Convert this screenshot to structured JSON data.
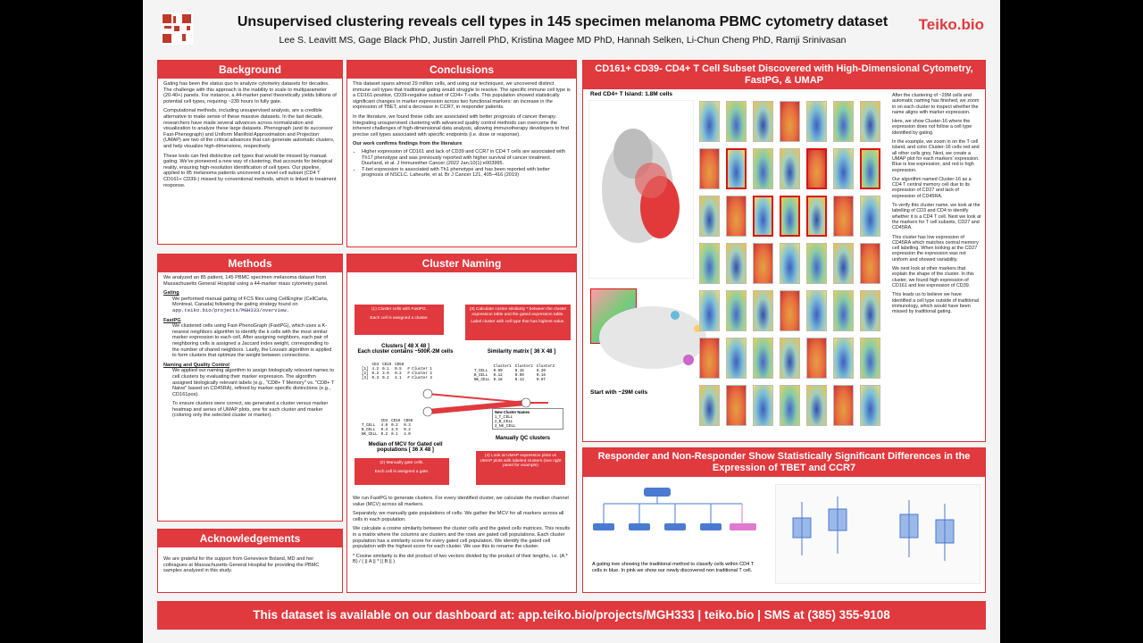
{
  "header": {
    "title": "Unsupervised clustering reveals cell types in 145 specimen melanoma PBMC cytometry dataset",
    "authors": "Lee S. Leavitt MS, Gage Black PhD, Justin Jarrell PhD, Kristina Magee MD PhD, Hannah Selken, Li-Chun Cheng PhD, Ramji Srinivasan",
    "logo": "Teiko.bio"
  },
  "background": {
    "title": "Background",
    "p1": "Gating has been the status quo to analyze cytometry datasets for decades. The challenge with this approach is the inability to scale to multiparameter (20-40+) panels. For instance, a 44-marker panel theoretically yields billions of potential cell types, requiring ~239 hours to fully gate.",
    "p2": "Computational methods, including unsupervised analysis, are a credible alternative to make sense of these massive datasets. In the last decade, researchers have made several advances across normalization and visualization to analyze these large datasets. Phenograph (and its successor Fast-Phenograph) and Uniform Manifold Approximation and Projection (UMAP) are two of the critical advances that can generate automatic clusters, and help visualize high-dimensions, respectively.",
    "p3": "These tools can find distinctive cell types that would be missed by manual gating. We've pioneered a new way of clustering, that accounts for biological reality, ensuring high-resolution identification of cell types. Our pipeline, applied to 85 melanoma patients uncovered a novel cell subset (CD4 T CD161+ CD39-) missed by conventional methods, which is linked to treatment response."
  },
  "methods": {
    "title": "Methods",
    "p1": "We analyzed an 85 patient, 145 PBMC specimen melanoma dataset from Massachusetts General Hospital using a 44-marker mass cytometry panel.",
    "gating_h": "Gating",
    "gating": "We performed manual gating of FCS files using CellEngine (CellCarta, Montreal, Canada) following the gating strategy found on",
    "gating_link": "app.teiko.bio/projects/MGH333/overview.",
    "fastpg_h": "FastPG",
    "fastpg": "We clustered cells using Fast-PhenoGraph (FastPG), which uses a K-nearest neighbors algorithm to identify the k cells with the most similar marker expression to each cell. After assigning neighbors, each pair of neighboring cells is assigned a Jaccard index weight, corresponding to the number of shared neighbors. Lastly, the Louvain algorithm is applied to form clusters that optimize the weight between connections.",
    "naming_h": "Naming and Quality Control",
    "naming": "We applied our naming algorithm to assign biologically relevant names to cell clusters by evaluating their marker expression. The algorithm assigned biologically relevant labels (e.g., \"CD8+ T Memory\" vs. \"CD8+ T Naive\" based on CD45RA), refined by marker-specific distinctions (e.g., CD161pos).",
    "qc": "To ensure clusters were correct, we generated a cluster versus marker heatmap and series of UMAP plots, one for each cluster and marker (coloring only the selected cluster or marker)."
  },
  "ack": {
    "title": "Acknowledgements",
    "text": "We are grateful for the support from Genevieve Boland, MD and her colleagues at Massachusetts General Hospital for providing the PBMC samples analyzed in this study."
  },
  "conclusions": {
    "title": "Conclusions",
    "p1": "This dataset spans almost 29 million cells, and using our techniques, we uncovered distinct immune cell types that traditional gating would struggle to resolve. The specific immune cell type is a CD161-positive, CD39-negative subset of CD4+ T-cells. This population showed statistically significant changes in marker expression across two functional markers: an increase in the expression of TBET, and a decrease in CCR7, in responder patients.",
    "p2": "In the literature, we found these cells are associated with better prognosis of cancer therapy. Integrating unsupervised clustering with advanced quality control methods can overcome the inherent challenges of high-dimensional data analysis, allowing immunotherapy developers to find precise cell types associated with specific endpoints (i.e. dose or response).",
    "lit_h": "Our work confirms findings from the literature",
    "b1": "Higher expression of CD161 and lack of CD39 and CCR7 in CD4 T cells are associated with Th17 phenotype and was previously reported with higher survival of cancer treatment. Duurland, et al. J Immunother Cancer (2022 Jan;10(1):e003995.",
    "b2": "T-bet expression is associated with Th1 phenotype and has been reported with better prognosis of NSCLC. Laheurte, et al. Br J Cancer 121, 405–416 (2019)"
  },
  "naming": {
    "title": "Cluster Naming",
    "box1a": "(1) Cluster cells with FastPG.",
    "box1b": "Each cell is assigned a cluster.",
    "box3a": "(3) Calculate cosine similarity * between the cluster expression table and the gated expression table.",
    "box3b": "Label cluster with cell type that has highest value.",
    "clusters_h": "Clusters [ 48 X 48 ]",
    "clusters_sub": "Each cluster contains ~500K-2M cells",
    "sim_h": "Similarity matrix [ 36 X 48 ]",
    "median_h": "Median of MCV for Gated cell populations [ 36 X 48 ]",
    "manual_qc": "Manually QC clusters",
    "new_names_h": "New Cluster Names",
    "new_names": [
      "1_T_CELL",
      "2_B_CELL",
      "3_NK_CELL"
    ],
    "box2a": "(2) Manually gate cells.",
    "box2b": "Each cell is assigned a gate.",
    "box4": "(4) Look at UMAP expression plots vs UMAP plots with labeled clusters (see right panel for example)",
    "t_cols": [
      "CD3",
      "CD19",
      "CD56"
    ],
    "t_rows": [
      [
        "[1]",
        "4.2",
        "0.1",
        "0.5",
        "# Cluster 1"
      ],
      [
        "[2]",
        "0.2",
        "3.9",
        "0.2",
        "# Cluster 2"
      ],
      [
        "[3]",
        "0.3",
        "0.2",
        "4.1",
        "# Cluster 3"
      ]
    ],
    "s_cols": [
      "Cluster1",
      "Cluster2",
      "Cluster3"
    ],
    "s_rows": [
      [
        "T_CELL",
        "0.99",
        "0.15",
        "0.20"
      ],
      [
        "B_CELL",
        "0.12",
        "0.99",
        "0.16"
      ],
      [
        "NK_CELL",
        "0.18",
        "0.13",
        "0.97"
      ]
    ],
    "m_rows": [
      [
        "T_CELL",
        "4.0",
        "0.2",
        "0.3"
      ],
      [
        "B_CELL",
        "0.3",
        "3.9",
        "0.2"
      ],
      [
        "NK_CELL",
        "0.2",
        "0.1",
        "4.0"
      ]
    ],
    "p1": "We run FastPG to generate clusters. For every identified cluster, we calculate the median channel value (MCV) across all markers.",
    "p2": "Separately, we manually gate populations of cells. We gather the MCV for all markers across all cells in each population.",
    "p3": "We calculate a cosine similarity between the cluster cells and the gated cells matrices. This results in a matrix where the columns are clusters and the rows are gated cell populations. Each cluster population has a similarity score for every gated cell population. We identify the gated cell population with the highest score for each cluster. We use this to rename the cluster.",
    "p4": "* Cosine similarity is the dot product of two vectors divided by the product of their lengths, i.e. (A * B) / ( || A || * || B || )"
  },
  "subset": {
    "title": "CD161+ CD39- CD4+ T Cell Subset Discovered with High-Dimensional Cytometry, FastPG, & UMAP",
    "island_label": "Red CD4+ T Island: 1.8M cells",
    "start_label": "Start with ~29M cells",
    "text": [
      "After the clustering of ~29M cells and automatic naming has finished, we zoom in on each cluster to inspect whether the name aligns with marker expression.",
      "Here, we show Cluster-16 where the expression does not follow a cell type identified by gating.",
      "In the example, we zoom in on the T cell island, and color Cluster-16 cells red and all other cells grey. Next, we create a UMAP plot for each markers' expression. Blue is low expression, and red is high expression.",
      "Our algorithm named Cluster-16 as a CD4 T central memory cell due to its expression of CD27 and lack of expression of CD45RA.",
      "To verify this cluster name, we look at the labelling of CD3 and CD4 to identify whether it is a CD4 T cell. Next we look at the markers for T cell subsets, CD27 and CD45RA.",
      "This cluster has low expression of CD45RA which matches central memory cell labelling. When looking at the CD27 expression the expression was not uniform and showed variability.",
      "We next look at other markers that explain the shape of the cluster. In this cluster, we found high expression of CD161 and low expression of CD39.",
      "This leads us to believe we have identified a cell type outside of traditional immunology, which would have been missed by traditional gating."
    ]
  },
  "responder": {
    "title": "Responder and Non-Responder Show Statistically Significant Differences in the Expression of TBET and CCR7",
    "caption": "A gating tree showing the traditional method to classify cells within CD4 T cells in blue. In pink we show our newly discovered non traditional T cell."
  },
  "footer": {
    "text": "This dataset is available on our dashboard at: app.teiko.bio/projects/MGH333 | teiko.bio | SMS at (385) 355-9108"
  },
  "colors": {
    "accent": "#e0393e",
    "gate_blue": "#4a7bd0",
    "gate_pink": "#e07ad0"
  }
}
